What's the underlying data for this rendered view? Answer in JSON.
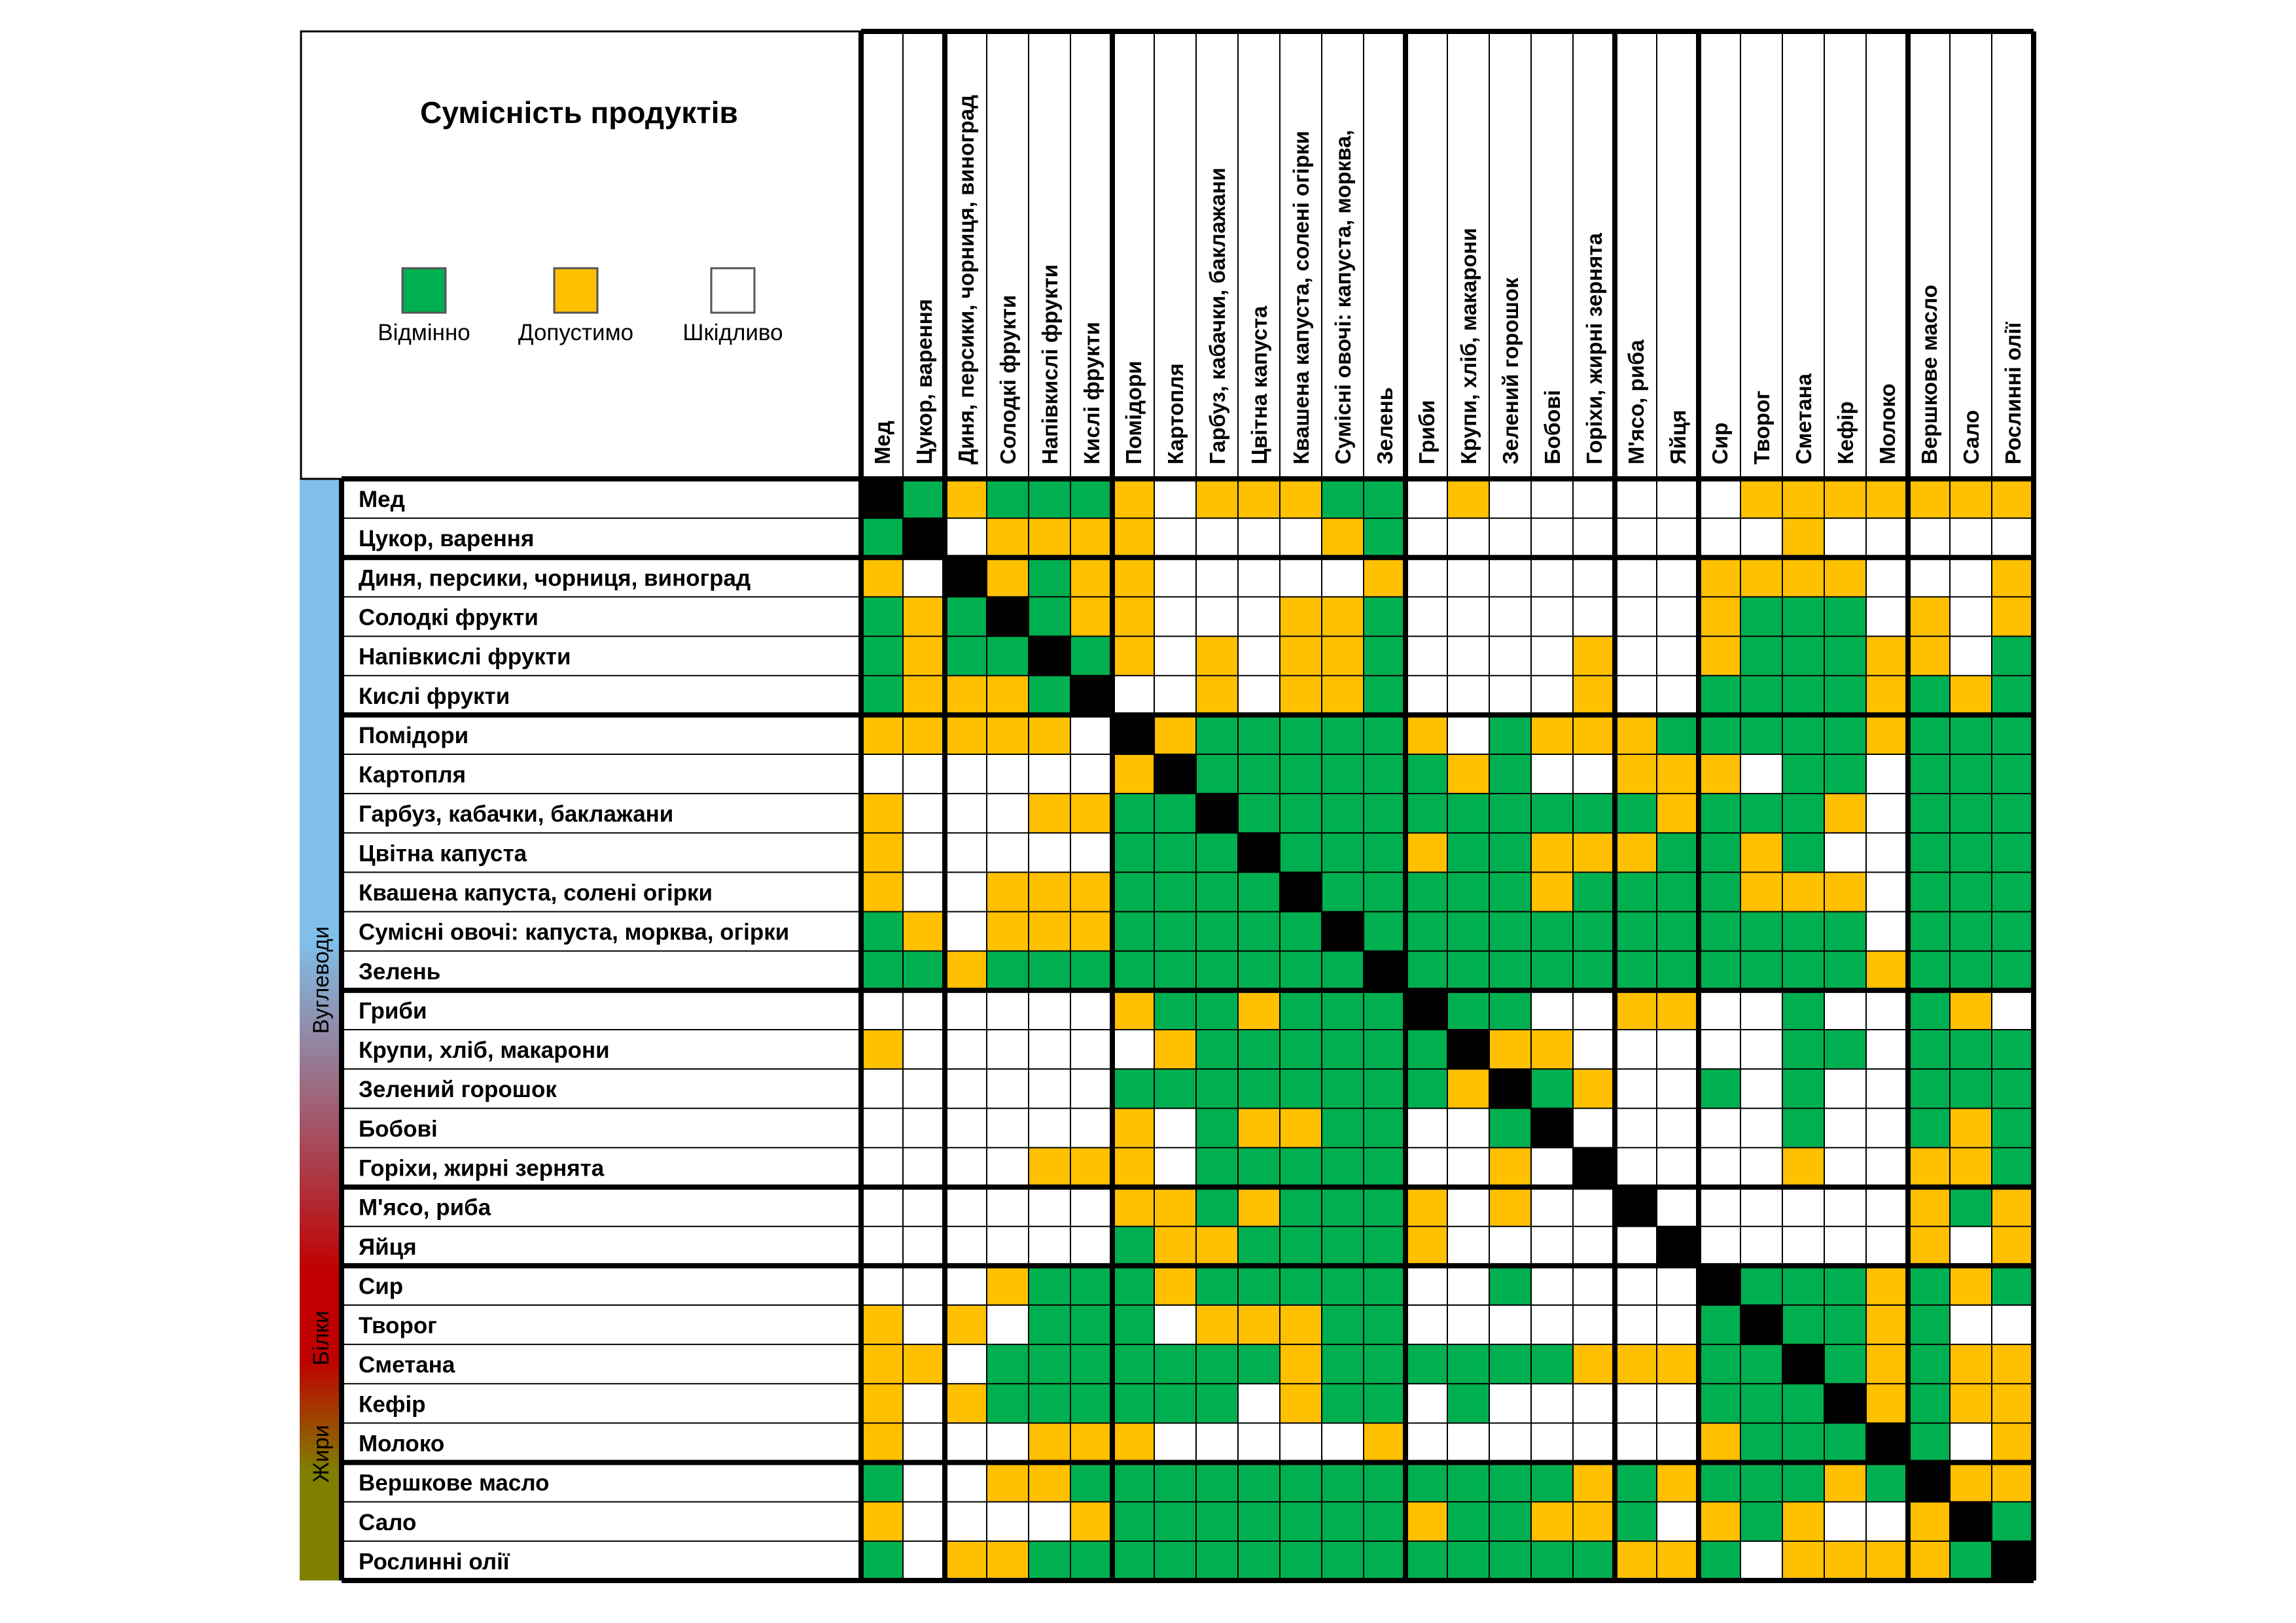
{
  "chart_data": {
    "type": "heatmap",
    "title": "Сумісність продуктів",
    "legend": [
      {
        "code": "G",
        "label": "Відмінно",
        "color": "#00b050"
      },
      {
        "code": "Y",
        "label": "Допустимо",
        "color": "#ffc000"
      },
      {
        "code": "W",
        "label": "Шкідливо",
        "color": "#ffffff"
      }
    ],
    "diagonal_color": "#000000",
    "items": [
      "Мед",
      "Цукор, варення",
      "Диня, персики, чорниця, виноград",
      "Солодкі фрукти",
      "Напівкислі фрукти",
      "Кислі фрукти",
      "Помідори",
      "Картопля",
      "Гарбуз, кабачки, баклажани",
      "Цвітна капуста",
      "Квашена капуста, солені огірки",
      "Сумісні овочі: капуста, морква, огірки",
      "Зелень",
      "Гриби",
      "Крупи, хліб, макарони",
      "Зелений горошок",
      "Бобові",
      "Горіхи, жирні зернята",
      "М'ясо, риба",
      "Яйця",
      "Сир",
      "Творог",
      "Сметана",
      "Кефір",
      "Молоко",
      "Вершкове масло",
      "Сало",
      "Рослинні олії"
    ],
    "column_labels": [
      "Мед",
      "Цукор, варення",
      "Диня, персики, чорниця, виноград",
      "Солодкі фрукти",
      "Напівкислі фрукти",
      "Кислі фрукти",
      "Помідори",
      "Картопля",
      "Гарбуз, кабачки, баклажани",
      "Цвітна капуста",
      "Квашена капуста, солені огірки",
      "Сумісні овочі: капуста, морква,",
      "Зелень",
      "Гриби",
      "Крупи, хліб, макарони",
      "Зелений горошок",
      "Бобові",
      "Горіхи, жирні зернята",
      "М'ясо, риба",
      "Яйця",
      "Сир",
      "Творог",
      "Сметана",
      "Кефір",
      "Молоко",
      "Вершкове масло",
      "Сало",
      "Рослинні олії"
    ],
    "group_boundaries": [
      2,
      6,
      13,
      18,
      20,
      25
    ],
    "categories": [
      {
        "label": "Вуглеводи",
        "from": 0,
        "to": 13
      },
      {
        "label": "Білки",
        "from": 13,
        "to": 20
      },
      {
        "label": "Жири",
        "from": 20,
        "to": 28
      }
    ],
    "category_colors": [
      "#7fbfe8",
      "#c00000",
      "#7f7f00"
    ],
    "matrix": [
      "XGYGGGYWYYYGGWYWWWWWWYYYYYYY",
      "GXWYYYYWWWWYGWWWWWWWWWYWWWWW",
      "YWXYGYYWWWWWYWWWWWWWYYYYWWWY",
      "GYGXGYYWWWYYGWWWWWWWYGGGWYWY",
      "GYGGXGYWYWYYGWWWWYWWYGGGYYWG",
      "GYYYGXWWYWYYGWWWWYWWGGGGYGYG",
      "YYYYYWXYGGGGGYWGYYYGGGGGYGGG",
      "WWWWWWYXGGGGGGYGWWYYYWGGWGGG",
      "YWWWYYGGXGGGGGGGGGGYGGGYWGGG",
      "YWWWWWGGGXGGGYGGYYYGGYGWWGGG",
      "YWWYYYGGGGXGGGGGYGGGGYYYWGGG",
      "GYWYYYGGGGGXGGGGGGGGGGGGWGGG",
      "GGYGGGGGGGGGXGGGGGGGGGGGYGGG",
      "WWWWWWYGGYGGGXGGWWYYWWGWWGYW",
      "YWWWWWWYGGGGGGXYYWWWWWGGWGGG",
      "WWWWWWGGGGGGGGYXGYWWGWGWWGGG",
      "WWWWWWYWGYYGGWWGXWWWWWGWWGYG",
      "WWWWYYYWGGGGGWWYWXWWWWYWWYYG",
      "WWWWWWYYGYGGGYWYWWXWWWWWWYGY",
      "WWWWWWGYYGGGGYWWWWWXWWWWWYWY",
      "WWWYGGGYGGGGGWWGWWWWXGGGYGYG",
      "YWYWGGGWYYYGGWWWWWWWGXGGYGWW",
      "YYWGGGGGGGYGGGGGGYYYGGXGYGYY",
      "YWYGGGGGGWYGGWGWWWWWGGGXYGYY",
      "YWWWYYYWWWWWYWWWWWWWYGGGXGWY",
      "GWWYYGGGGGGGGGGGGYGYGGGYGXYY",
      "YWWWWYGGGGGGGYGGYYGWYGYWWYXG",
      "GWYYGGGGGGGGGGGGGGYYGWYYYYGX"
    ]
  }
}
